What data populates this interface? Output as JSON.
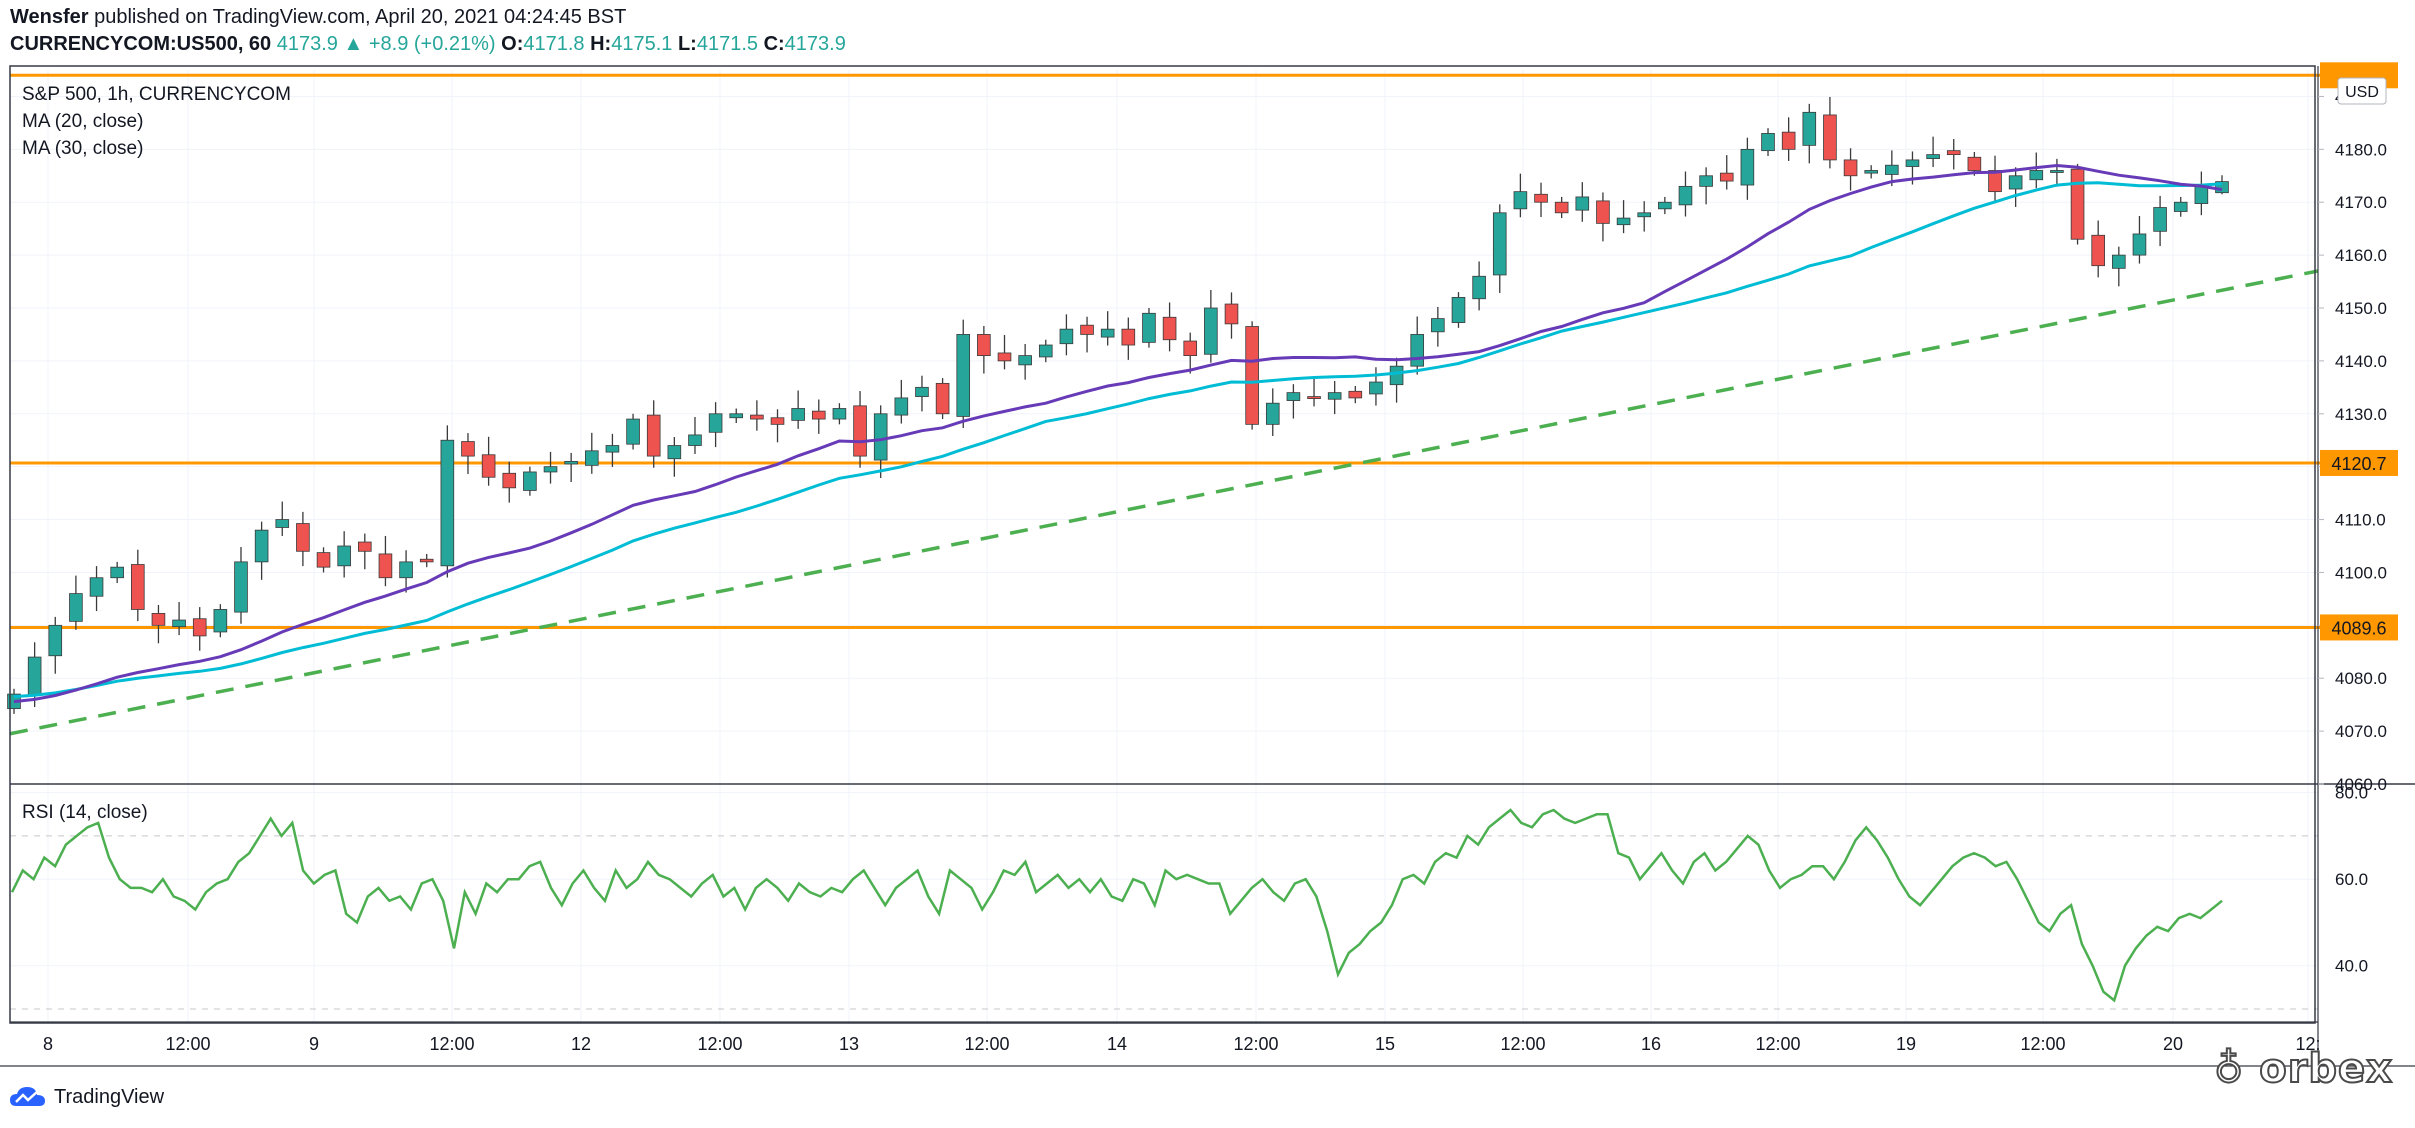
{
  "header": {
    "author": "Wensfer",
    "published_text": "published on TradingView.com, April 20, 2021 04:24:45 BST",
    "symbol": "CURRENCYCOM:US500, 60",
    "last": "4173.9",
    "change": "+8.9 (+0.21%)",
    "o_label": "O:",
    "o_val": "4171.8",
    "h_label": "H:",
    "h_val": "4175.1",
    "l_label": "L:",
    "l_val": "4171.5",
    "c_label": "C:",
    "c_val": "4173.9"
  },
  "legend": {
    "title": "S&P 500, 1h, CURRENCYCOM",
    "ma20": "MA (20, close)",
    "ma30": "MA (30, close)",
    "rsi": "RSI (14, close)"
  },
  "currency": "USD",
  "footer": {
    "brand": "TradingView",
    "watermark": "orbex"
  },
  "colors": {
    "up": "#26a69a",
    "down": "#ef5350",
    "ma20": "#673ab7",
    "ma30": "#00bcd4",
    "hline": "#ff9800",
    "trend": "#4caf50",
    "rsi": "#4caf50"
  },
  "chart_data": [
    {
      "type": "candlestick",
      "title": "S&P 500, 1h, CURRENCYCOM",
      "ylim": [
        4060,
        4195
      ],
      "y_ticks": [
        4060.0,
        4070.0,
        4080.0,
        4090.0,
        4100.0,
        4110.0,
        4120.0,
        4130.0,
        4140.0,
        4150.0,
        4160.0,
        4170.0,
        4180.0,
        4190.0
      ],
      "x_ticks": [
        "8",
        "12:00",
        "9",
        "12:00",
        "12",
        "12:00",
        "13",
        "12:00",
        "14",
        "12:00",
        "15",
        "12:00",
        "16",
        "12:00",
        "19",
        "12:00",
        "20",
        "12:"
      ],
      "horizontal_levels": [
        4120.7,
        4089.6,
        4194.0
      ],
      "price_labels": [
        "4120.7",
        "4089.6"
      ],
      "trendline": {
        "start": 4069.5,
        "end": 4157.0
      },
      "close_path": [
        4077,
        4084,
        4090,
        4096,
        4099,
        4101,
        4093,
        4090,
        4091,
        4088,
        4093,
        4102,
        4108,
        4110,
        4104,
        4101,
        4105,
        4104,
        4099,
        4102,
        4102,
        4125,
        4122,
        4118,
        4116,
        4119,
        4120,
        4121,
        4123,
        4124,
        4129,
        4122,
        4124,
        4126,
        4130,
        4130,
        4129,
        4128,
        4131,
        4129,
        4131,
        4122,
        4130,
        4133,
        4135,
        4130,
        4145,
        4141,
        4140,
        4141,
        4143,
        4146,
        4145,
        4146,
        4143,
        4149,
        4144,
        4141,
        4150,
        4147,
        4128,
        4132,
        4134,
        4133,
        4134,
        4133,
        4136,
        4139,
        4145,
        4148,
        4152,
        4156,
        4168,
        4172,
        4170,
        4168,
        4171,
        4166,
        4167,
        4168,
        4170,
        4173,
        4175,
        4174,
        4180,
        4183,
        4180,
        4187,
        4178,
        4175,
        4176,
        4177,
        4178,
        4179,
        4179,
        4176,
        4172,
        4175,
        4176,
        4176,
        4163,
        4158,
        4160,
        4164,
        4169,
        4170,
        4173,
        4173.9
      ],
      "ma20": [
        4075.5,
        4172
      ],
      "ma30": [
        4076.5,
        4173
      ],
      "ohlc_last": {
        "o": 4171.8,
        "h": 4175.1,
        "l": 4171.5,
        "c": 4173.9
      }
    },
    {
      "type": "line",
      "title": "RSI (14, close)",
      "ylim": [
        27,
        82
      ],
      "y_ticks": [
        40.0,
        60.0,
        80.0
      ],
      "overbought": 70,
      "oversold": 30,
      "values": [
        57,
        62,
        60,
        65,
        63,
        68,
        70,
        72,
        73,
        65,
        60,
        58,
        58,
        57,
        60,
        56,
        55,
        53,
        57,
        59,
        60,
        64,
        66,
        70,
        74,
        70,
        73,
        62,
        59,
        61,
        62,
        52,
        50,
        56,
        58,
        55,
        56,
        53,
        59,
        60,
        55,
        44,
        57,
        52,
        59,
        57,
        60,
        60,
        63,
        64,
        58,
        54,
        59,
        62,
        58,
        55,
        62,
        58,
        60,
        64,
        61,
        60,
        58,
        56,
        59,
        61,
        56,
        58,
        53,
        58,
        60,
        58,
        55,
        59,
        57,
        56,
        58,
        57,
        60,
        62,
        58,
        54,
        58,
        60,
        62,
        56,
        52,
        62,
        60,
        58,
        53,
        57,
        62,
        61,
        64,
        57,
        59,
        61,
        58,
        60,
        57,
        60,
        56,
        55,
        60,
        59,
        54,
        62,
        60,
        61,
        60,
        59,
        59,
        52,
        55,
        58,
        60,
        57,
        55,
        59,
        60,
        56,
        48,
        38,
        43,
        45,
        48,
        50,
        54,
        60,
        61,
        59,
        64,
        66,
        65,
        70,
        68,
        72,
        74,
        76,
        73,
        72,
        75,
        76,
        74,
        73,
        74,
        75,
        75,
        66,
        65,
        60,
        63,
        66,
        62,
        59,
        64,
        66,
        62,
        64,
        67,
        70,
        68,
        62,
        58,
        60,
        61,
        63,
        63,
        60,
        64,
        69,
        72,
        69,
        65,
        60,
        56,
        54,
        57,
        60,
        63,
        65,
        66,
        65,
        63,
        64,
        60,
        55,
        50,
        48,
        52,
        54,
        45,
        40,
        34,
        32,
        40,
        44,
        47,
        49,
        48,
        51,
        52,
        51,
        53,
        55
      ]
    }
  ]
}
